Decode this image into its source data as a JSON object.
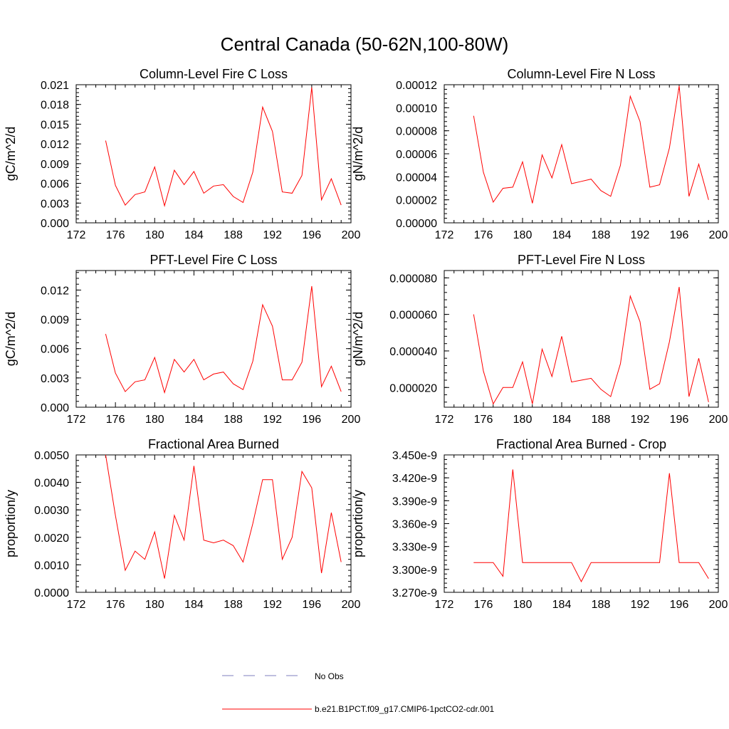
{
  "figure": {
    "title": "Central Canada (50-62N,100-80W)",
    "legend": [
      {
        "label": "No Obs",
        "color": "#7f7fbf",
        "dash": true
      },
      {
        "label": "b.e21.B1PCT.f09_g17.CMIP6-1pctCO2-cdr.001",
        "color": "#ff0000",
        "dash": false
      }
    ]
  },
  "chart_data": [
    {
      "type": "line",
      "title": "Column-Level Fire C Loss",
      "ylabel": "gC/m^2/d",
      "xlabel": "",
      "xlim": [
        172,
        200
      ],
      "ylim": [
        0,
        0.021
      ],
      "xticks": [
        "172",
        "176",
        "180",
        "184",
        "188",
        "192",
        "196",
        "200"
      ],
      "yticks": [
        "0.000",
        "0.003",
        "0.006",
        "0.009",
        "0.012",
        "0.015",
        "0.018",
        "0.021"
      ],
      "series": [
        {
          "color": "#ff0000",
          "x": [
            175,
            176,
            177,
            178,
            179,
            180,
            181,
            182,
            183,
            184,
            185,
            186,
            187,
            188,
            189,
            190,
            191,
            192,
            193,
            194,
            195,
            196,
            197,
            198,
            199
          ],
          "y": [
            0.0125,
            0.0057,
            0.0027,
            0.0043,
            0.0047,
            0.0085,
            0.0026,
            0.008,
            0.0058,
            0.0078,
            0.0045,
            0.0056,
            0.0058,
            0.004,
            0.0031,
            0.0077,
            0.0176,
            0.0139,
            0.0047,
            0.0045,
            0.0072,
            0.0206,
            0.0035,
            0.0067,
            0.0027
          ]
        }
      ]
    },
    {
      "type": "line",
      "title": "Column-Level Fire N Loss",
      "ylabel": "gN/m^2/d",
      "xlabel": "",
      "xlim": [
        172,
        200
      ],
      "ylim": [
        0,
        0.00012
      ],
      "xticks": [
        "172",
        "176",
        "180",
        "184",
        "188",
        "192",
        "196",
        "200"
      ],
      "yticks": [
        "0.00000",
        "0.00002",
        "0.00004",
        "0.00006",
        "0.00008",
        "0.00010",
        "0.00012"
      ],
      "series": [
        {
          "color": "#ff0000",
          "x": [
            175,
            176,
            177,
            178,
            179,
            180,
            181,
            182,
            183,
            184,
            185,
            186,
            187,
            188,
            189,
            190,
            191,
            192,
            193,
            194,
            195,
            196,
            197,
            198,
            199
          ],
          "y": [
            9.3e-05,
            4.4e-05,
            1.8e-05,
            3e-05,
            3.1e-05,
            5.3e-05,
            1.7e-05,
            5.9e-05,
            3.9e-05,
            6.8e-05,
            3.4e-05,
            3.6e-05,
            3.8e-05,
            2.8e-05,
            2.3e-05,
            5e-05,
            0.00011,
            8.8e-05,
            3.1e-05,
            3.3e-05,
            6.5e-05,
            0.000119,
            2.3e-05,
            5.1e-05,
            2e-05
          ]
        }
      ]
    },
    {
      "type": "line",
      "title": "PFT-Level Fire C Loss",
      "ylabel": "gC/m^2/d",
      "xlabel": "",
      "xlim": [
        172,
        200
      ],
      "ylim": [
        0,
        0.014
      ],
      "xticks": [
        "172",
        "176",
        "180",
        "184",
        "188",
        "192",
        "196",
        "200"
      ],
      "yticks": [
        "0.000",
        "0.003",
        "0.006",
        "0.009",
        "0.012"
      ],
      "series": [
        {
          "color": "#ff0000",
          "x": [
            175,
            176,
            177,
            178,
            179,
            180,
            181,
            182,
            183,
            184,
            185,
            186,
            187,
            188,
            189,
            190,
            191,
            192,
            193,
            194,
            195,
            196,
            197,
            198,
            199
          ],
          "y": [
            0.0075,
            0.0035,
            0.0016,
            0.0026,
            0.0028,
            0.0051,
            0.0015,
            0.0049,
            0.0036,
            0.0049,
            0.0028,
            0.0034,
            0.0036,
            0.0024,
            0.0018,
            0.0047,
            0.0105,
            0.0083,
            0.0028,
            0.0028,
            0.0046,
            0.0124,
            0.0021,
            0.0042,
            0.0016
          ]
        }
      ]
    },
    {
      "type": "line",
      "title": "PFT-Level Fire N Loss",
      "ylabel": "gN/m^2/d",
      "xlabel": "",
      "xlim": [
        172,
        200
      ],
      "ylim": [
        9.2e-06,
        8.4e-05
      ],
      "xticks": [
        "172",
        "176",
        "180",
        "184",
        "188",
        "192",
        "196",
        "200"
      ],
      "yticks": [
        "0.000020",
        "0.000040",
        "0.000060",
        "0.000080"
      ],
      "series": [
        {
          "color": "#ff0000",
          "x": [
            175,
            176,
            177,
            178,
            179,
            180,
            181,
            182,
            183,
            184,
            185,
            186,
            187,
            188,
            189,
            190,
            191,
            192,
            193,
            194,
            195,
            196,
            197,
            198,
            199
          ],
          "y": [
            6e-05,
            2.9e-05,
            1.1e-05,
            2e-05,
            2e-05,
            3.4e-05,
            1.1e-05,
            4.1e-05,
            2.6e-05,
            4.8e-05,
            2.3e-05,
            2.4e-05,
            2.5e-05,
            1.9e-05,
            1.5e-05,
            3.3e-05,
            7e-05,
            5.6e-05,
            1.9e-05,
            2.2e-05,
            4.5e-05,
            7.5e-05,
            1.5e-05,
            3.6e-05,
            1.2e-05
          ]
        }
      ]
    },
    {
      "type": "line",
      "title": "Fractional Area Burned",
      "ylabel": "proportion/y",
      "xlabel": "",
      "xlim": [
        172,
        200
      ],
      "ylim": [
        0,
        0.005
      ],
      "xticks": [
        "172",
        "176",
        "180",
        "184",
        "188",
        "192",
        "196",
        "200"
      ],
      "yticks": [
        "0.0000",
        "0.0010",
        "0.0020",
        "0.0030",
        "0.0040",
        "0.0050"
      ],
      "series": [
        {
          "color": "#ff0000",
          "x": [
            175,
            176,
            177,
            178,
            179,
            180,
            181,
            182,
            183,
            184,
            185,
            186,
            187,
            188,
            189,
            190,
            191,
            192,
            193,
            194,
            195,
            196,
            197,
            198,
            199
          ],
          "y": [
            0.005,
            0.0028,
            0.0008,
            0.0015,
            0.0012,
            0.0022,
            0.0005,
            0.0028,
            0.0019,
            0.0046,
            0.0019,
            0.0018,
            0.0019,
            0.0017,
            0.0011,
            0.0025,
            0.0041,
            0.0041,
            0.0012,
            0.002,
            0.0044,
            0.0038,
            0.0007,
            0.0029,
            0.0011
          ]
        }
      ]
    },
    {
      "type": "line",
      "title": "Fractional Area Burned - Crop",
      "ylabel": "proportion/y",
      "xlabel": "",
      "xlim": [
        172,
        200
      ],
      "ylim": [
        3.27e-09,
        3.45e-09
      ],
      "xticks": [
        "172",
        "176",
        "180",
        "184",
        "188",
        "192",
        "196",
        "200"
      ],
      "yticks": [
        "3.270e-9",
        "3.300e-9",
        "3.330e-9",
        "3.360e-9",
        "3.390e-9",
        "3.420e-9",
        "3.450e-9"
      ],
      "series": [
        {
          "color": "#ff0000",
          "x": [
            175,
            176,
            177,
            178,
            179,
            180,
            181,
            182,
            183,
            184,
            185,
            186,
            187,
            188,
            189,
            190,
            191,
            192,
            193,
            194,
            195,
            196,
            197,
            198,
            199
          ],
          "y": [
            3.309e-09,
            3.309e-09,
            3.309e-09,
            3.291e-09,
            3.431e-09,
            3.309e-09,
            3.309e-09,
            3.309e-09,
            3.309e-09,
            3.309e-09,
            3.309e-09,
            3.284e-09,
            3.309e-09,
            3.309e-09,
            3.309e-09,
            3.309e-09,
            3.309e-09,
            3.309e-09,
            3.309e-09,
            3.309e-09,
            3.426e-09,
            3.309e-09,
            3.309e-09,
            3.309e-09,
            3.288e-09
          ]
        }
      ]
    }
  ]
}
